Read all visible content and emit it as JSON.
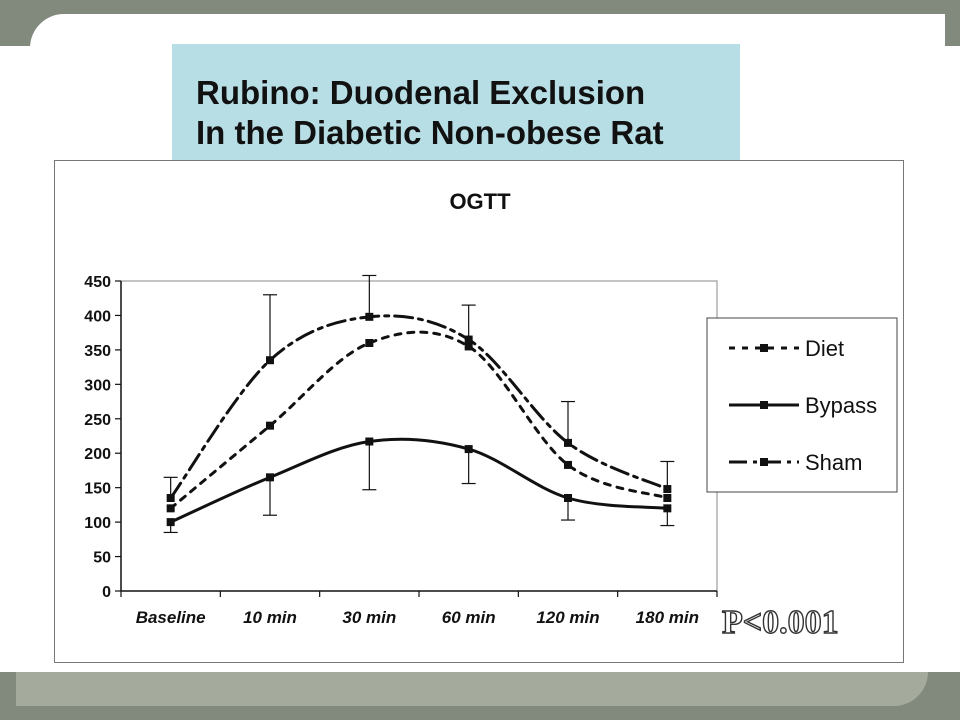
{
  "slide": {
    "title_line1": "Rubino: Duodenal Exclusion",
    "title_line2": "In the Diabetic Non-obese Rat",
    "pvalue": "P<0.001"
  },
  "chart_data": {
    "type": "line",
    "title": "OGTT",
    "xlabel": "",
    "ylabel": "",
    "categories": [
      "Baseline",
      "10 min",
      "30 min",
      "60 min",
      "120 min",
      "180 min"
    ],
    "ylim": [
      0,
      450
    ],
    "yticks": [
      0,
      50,
      100,
      150,
      200,
      250,
      300,
      350,
      400,
      450
    ],
    "grid": false,
    "legend_position": "right",
    "series": [
      {
        "name": "Diet",
        "style": "dotted",
        "color": "#111111",
        "values": [
          120,
          240,
          360,
          355,
          183,
          135
        ],
        "err_up": [
          0,
          0,
          0,
          0,
          0,
          0
        ],
        "err_down": [
          0,
          0,
          0,
          0,
          0,
          0
        ]
      },
      {
        "name": "Bypass",
        "style": "solid",
        "color": "#111111",
        "values": [
          100,
          165,
          217,
          206,
          135,
          120
        ],
        "err_up": [
          0,
          0,
          0,
          0,
          0,
          0
        ],
        "err_down": [
          15,
          55,
          70,
          50,
          32,
          25
        ]
      },
      {
        "name": "Sham",
        "style": "dashdot",
        "color": "#111111",
        "values": [
          135,
          335,
          398,
          365,
          215,
          148
        ],
        "err_up": [
          30,
          95,
          60,
          50,
          60,
          40
        ],
        "err_down": [
          0,
          0,
          0,
          0,
          0,
          0
        ]
      }
    ]
  }
}
